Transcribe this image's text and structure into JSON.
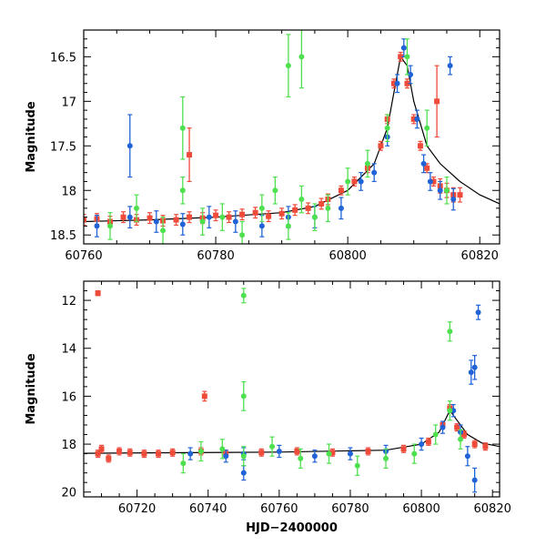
{
  "colors": {
    "red": "#ef4b3a",
    "blue": "#1f63d6",
    "green": "#4fe04f",
    "model": "#000000"
  },
  "chart_data": [
    {
      "type": "scatter",
      "panel": "top",
      "title": "",
      "xlabel": "",
      "ylabel": "Magnitude",
      "xlim": [
        60760,
        60823
      ],
      "ylim": [
        18.6,
        16.2
      ],
      "y_inverted": true,
      "grid": false,
      "legend": "none",
      "x_ticks": [
        60760,
        60780,
        60800,
        60820
      ],
      "x_tick_labels": [
        "60760",
        "60780",
        "60800",
        "60820"
      ],
      "y_ticks": [
        16.5,
        17,
        17.5,
        18,
        18.5
      ],
      "y_tick_labels": [
        "16.5",
        "17",
        "17.5",
        "18",
        "18.5"
      ],
      "series": [
        {
          "color": "red",
          "x": [
            60760,
            60762,
            60764,
            60766,
            60768,
            60770,
            60772,
            60774,
            60776,
            60778,
            60780,
            60782,
            60784,
            60786,
            60788,
            60790,
            60792,
            60794,
            60796,
            60797,
            60799,
            60801,
            60803,
            60805,
            60806,
            60807,
            60808,
            60809,
            60810,
            60811,
            60812,
            60813,
            60814,
            60815,
            60816,
            60817,
            60776,
            60813.5
          ],
          "y": [
            18.33,
            18.32,
            18.35,
            18.3,
            18.33,
            18.31,
            18.34,
            18.33,
            18.3,
            18.31,
            18.28,
            18.3,
            18.27,
            18.25,
            18.29,
            18.26,
            18.22,
            18.2,
            18.15,
            18.1,
            18.0,
            17.9,
            17.75,
            17.5,
            17.2,
            16.8,
            16.5,
            16.8,
            17.2,
            17.5,
            17.75,
            17.9,
            17.95,
            18.0,
            18.05,
            18.05,
            17.6,
            17.0
          ],
          "yerr": [
            0.06,
            0.06,
            0.06,
            0.06,
            0.06,
            0.06,
            0.06,
            0.06,
            0.06,
            0.06,
            0.06,
            0.06,
            0.06,
            0.06,
            0.06,
            0.06,
            0.06,
            0.06,
            0.06,
            0.06,
            0.05,
            0.05,
            0.05,
            0.05,
            0.05,
            0.05,
            0.05,
            0.05,
            0.05,
            0.05,
            0.05,
            0.05,
            0.08,
            0.08,
            0.08,
            0.08,
            0.3,
            0.4
          ]
        },
        {
          "color": "blue",
          "x": [
            60762,
            60767,
            60771,
            60775,
            60779,
            60783,
            60787,
            60791,
            60795,
            60799,
            60802,
            60804,
            60806,
            60807.5,
            60808.5,
            60809.5,
            60810.5,
            60811.5,
            60812.5,
            60814,
            60816,
            60767,
            60815.5
          ],
          "y": [
            18.4,
            18.3,
            18.35,
            18.38,
            18.3,
            18.35,
            18.4,
            18.3,
            18.3,
            18.2,
            17.9,
            17.8,
            17.4,
            16.8,
            16.4,
            16.7,
            17.2,
            17.7,
            17.9,
            18.0,
            18.1,
            17.5,
            16.6
          ],
          "yerr": [
            0.12,
            0.12,
            0.12,
            0.12,
            0.12,
            0.12,
            0.12,
            0.12,
            0.12,
            0.12,
            0.1,
            0.1,
            0.1,
            0.1,
            0.1,
            0.1,
            0.1,
            0.1,
            0.1,
            0.1,
            0.12,
            0.35,
            0.1
          ]
        },
        {
          "color": "green",
          "x": [
            60764,
            60768,
            60772,
            60775,
            60778,
            60781,
            60784,
            60787,
            60789,
            60791,
            60793,
            60795,
            60797,
            60800,
            60803,
            60806,
            60809,
            60812,
            60815,
            60791,
            60793,
            60775
          ],
          "y": [
            18.4,
            18.2,
            18.45,
            18.0,
            18.35,
            18.3,
            18.5,
            18.2,
            18.0,
            18.4,
            18.1,
            18.3,
            18.2,
            17.9,
            17.7,
            17.3,
            16.5,
            17.3,
            18.0,
            16.6,
            16.5,
            17.3
          ],
          "yerr": [
            0.15,
            0.15,
            0.15,
            0.15,
            0.15,
            0.15,
            0.15,
            0.15,
            0.15,
            0.15,
            0.15,
            0.15,
            0.15,
            0.15,
            0.15,
            0.15,
            0.2,
            0.2,
            0.15,
            0.35,
            0.35,
            0.35
          ]
        }
      ],
      "model_curve": {
        "color": "model",
        "x": [
          60760,
          60770,
          60780,
          60790,
          60795,
          60800,
          60804,
          60806,
          60807,
          60808,
          60809,
          60810,
          60812,
          60814,
          60817,
          60820,
          60823
        ],
        "y": [
          18.35,
          18.33,
          18.3,
          18.25,
          18.18,
          18.0,
          17.7,
          17.3,
          16.9,
          16.5,
          16.6,
          17.0,
          17.5,
          17.7,
          17.9,
          18.05,
          18.15
        ]
      }
    },
    {
      "type": "scatter",
      "panel": "bottom",
      "title": "",
      "xlabel": "HJD−2400000",
      "ylabel": "Magnitude",
      "xlim": [
        60705,
        60822
      ],
      "ylim": [
        20.2,
        11.2
      ],
      "y_inverted": true,
      "grid": false,
      "legend": "none",
      "x_ticks": [
        60720,
        60740,
        60760,
        60780,
        60800,
        60820
      ],
      "x_tick_labels": [
        "60720",
        "60740",
        "60760",
        "60780",
        "60800",
        "60820"
      ],
      "y_ticks": [
        12,
        14,
        16,
        18,
        20
      ],
      "y_tick_labels": [
        "12",
        "14",
        "16",
        "18",
        "20"
      ],
      "series": [
        {
          "color": "red",
          "x": [
            60709,
            60710,
            60712,
            60715,
            60718,
            60722,
            60726,
            60730,
            60738,
            60745,
            60755,
            60765,
            60775,
            60785,
            60795,
            60802,
            60806,
            60808,
            60810,
            60812,
            60815,
            60818,
            60709,
            60739
          ],
          "y": [
            18.4,
            18.2,
            18.6,
            18.3,
            18.35,
            18.4,
            18.4,
            18.35,
            18.3,
            18.4,
            18.35,
            18.3,
            18.35,
            18.3,
            18.2,
            17.9,
            17.2,
            16.5,
            17.3,
            17.6,
            18.0,
            18.1,
            11.7,
            16.0
          ],
          "yerr": [
            0.15,
            0.15,
            0.15,
            0.15,
            0.15,
            0.15,
            0.15,
            0.15,
            0.15,
            0.15,
            0.15,
            0.15,
            0.15,
            0.15,
            0.15,
            0.15,
            0.15,
            0.15,
            0.15,
            0.15,
            0.15,
            0.15,
            0.1,
            0.2
          ]
        },
        {
          "color": "blue",
          "x": [
            60735,
            60745,
            60750,
            60760,
            60770,
            60780,
            60790,
            60800,
            60806,
            60809,
            60811,
            60813,
            60815,
            60816,
            60814,
            60815,
            60750
          ],
          "y": [
            18.4,
            18.5,
            18.4,
            18.3,
            18.5,
            18.4,
            18.3,
            18.0,
            17.3,
            16.6,
            17.5,
            18.5,
            19.5,
            12.5,
            15.0,
            14.8,
            19.2
          ],
          "yerr": [
            0.25,
            0.25,
            0.25,
            0.25,
            0.25,
            0.25,
            0.25,
            0.25,
            0.25,
            0.25,
            0.3,
            0.4,
            0.5,
            0.3,
            0.5,
            0.5,
            0.3
          ]
        },
        {
          "color": "green",
          "x": [
            60733,
            60738,
            60744,
            60750,
            60758,
            60766,
            60774,
            60782,
            60790,
            60798,
            60804,
            60808,
            60811,
            60750,
            60750,
            60808
          ],
          "y": [
            18.8,
            18.3,
            18.2,
            18.5,
            18.1,
            18.6,
            18.4,
            18.9,
            18.6,
            18.4,
            17.6,
            16.6,
            17.8,
            11.8,
            16.0,
            13.3
          ],
          "yerr": [
            0.4,
            0.4,
            0.4,
            0.4,
            0.4,
            0.4,
            0.4,
            0.4,
            0.4,
            0.4,
            0.4,
            0.4,
            0.4,
            0.3,
            0.6,
            0.4
          ]
        }
      ],
      "model_curve": {
        "color": "model",
        "x": [
          60705,
          60730,
          60760,
          60790,
          60800,
          60805,
          60808,
          60810,
          60813,
          60817,
          60822
        ],
        "y": [
          18.38,
          18.36,
          18.33,
          18.25,
          18.0,
          17.5,
          16.6,
          17.0,
          17.6,
          17.95,
          18.1
        ]
      }
    }
  ]
}
